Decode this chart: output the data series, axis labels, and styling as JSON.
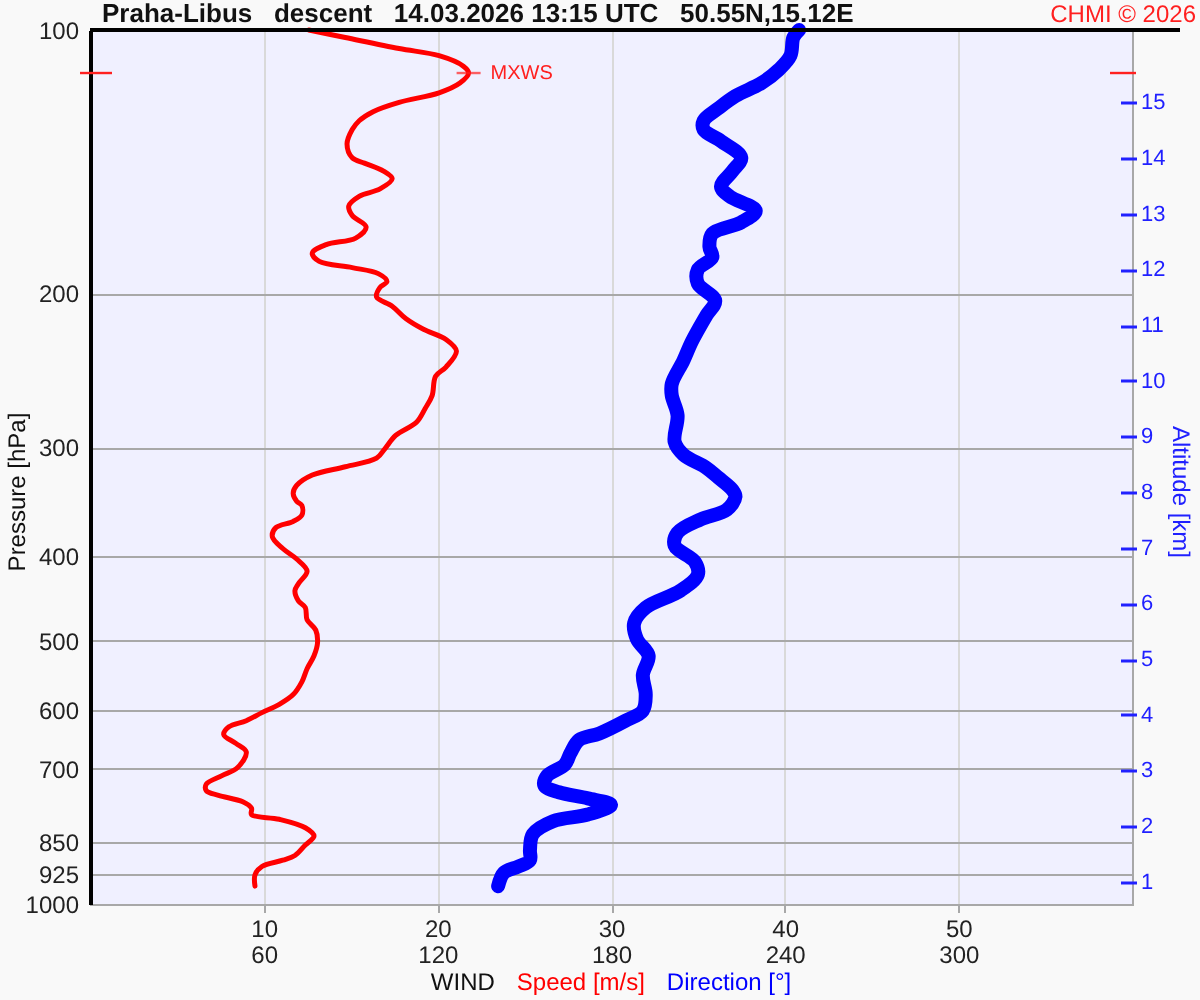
{
  "chart_data": {
    "type": "line",
    "title": "Praha-Libus   descent   14.03.2026 13:15 UTC   50.55N,15.12E",
    "xlabel": "WIND",
    "ylabel": "Pressure [hPa]",
    "y2label": "Altitude [km]",
    "annotations": [
      "CHMI © 2026",
      {
        "text": "MXWS",
        "x": 21.8,
        "y": 112
      }
    ],
    "series": [
      {
        "name": "Speed [m/s]",
        "color": "#ff0000",
        "x": [
          12.6,
          14.7,
          17.8,
          20.1,
          21.5,
          21.8,
          21.3,
          20.1,
          17.8,
          16.3,
          15.5,
          15.1,
          14.8,
          15.1,
          15.8,
          16.9,
          17.4,
          16.7,
          15.5,
          14.9,
          15.1,
          15.9,
          15.3,
          13.6,
          12.8,
          13.2,
          15.1,
          16.6,
          17.1,
          16.7,
          16.5,
          17.4,
          18.2,
          19.2,
          20.5,
          21.1,
          20.5,
          19.9,
          19.7,
          19.3,
          18.8,
          17.6,
          17.0,
          16.5,
          14.7,
          12.8,
          11.9,
          11.7,
          11.9,
          12.2,
          12.2,
          11.7,
          10.7,
          10.5,
          11.1,
          11.9,
          12.5,
          12.0,
          11.8,
          12.0,
          12.4,
          12.5,
          13.0,
          13.1,
          12.9,
          12.5,
          12.2,
          11.7,
          10.9,
          9.9,
          9.0,
          8.0,
          7.7,
          8.4,
          9.0,
          8.5,
          7.6,
          6.7,
          6.7,
          7.4,
          8.8,
          9.3,
          9.3,
          10.9,
          12.4,
          12.9,
          12.4,
          11.8,
          11.1,
          9.9,
          9.5,
          9.5
        ],
        "values": [
          100,
          102,
          105,
          107,
          110,
          112,
          115,
          118,
          121,
          124,
          127,
          130,
          135,
          140,
          142,
          145,
          148,
          152,
          155,
          159,
          163,
          168,
          173,
          176,
          180,
          184,
          187,
          190,
          194,
          197,
          202,
          207,
          214,
          220,
          226,
          233,
          243,
          249,
          262,
          271,
          281,
          291,
          301,
          309,
          316,
          323,
          332,
          339,
          346,
          350,
          359,
          365,
          371,
          380,
          392,
          403,
          416,
          430,
          438,
          450,
          458,
          473,
          486,
          503,
          520,
          538,
          557,
          576,
          591,
          604,
          617,
          627,
          640,
          655,
          670,
          698,
          713,
          729,
          742,
          751,
          764,
          777,
          790,
          800,
          818,
          836,
          856,
          880,
          891,
          906,
          926,
          954
        ]
      },
      {
        "name": "Direction [°]",
        "color": "#0000ff",
        "axis": "x2",
        "x": [
          245,
          243,
          242,
          238,
          232,
          223,
          217,
          212,
          212,
          218,
          225,
          222,
          218,
          221,
          230,
          225,
          215,
          214,
          215,
          210,
          210,
          216,
          213,
          208,
          205,
          201,
          201,
          203,
          202,
          205,
          213,
          217,
          222,
          223,
          220,
          211,
          203,
          202,
          209,
          210,
          204,
          192,
          188,
          189,
          193,
          191,
          192,
          191,
          185,
          176,
          169,
          166,
          164,
          158,
          157,
          162,
          172,
          180,
          172,
          160,
          153,
          152,
          152,
          148,
          143,
          141
        ],
        "values": [
          100,
          102,
          107,
          111,
          115,
          119,
          123,
          127,
          130,
          134,
          140,
          145,
          151,
          155,
          161,
          166,
          171,
          177,
          182,
          188,
          195,
          204,
          212,
          227,
          239,
          254,
          262,
          276,
          296,
          306,
          317,
          325,
          336,
          342,
          354,
          363,
          376,
          389,
          406,
          420,
          438,
          458,
          477,
          498,
          520,
          547,
          576,
          601,
          617,
          638,
          649,
          672,
          693,
          713,
          732,
          745,
          757,
          770,
          790,
          804,
          832,
          868,
          891,
          906,
          921,
          954
        ]
      }
    ],
    "xlim": [
      0,
      60
    ],
    "xticks": [
      10,
      20,
      30,
      40,
      50
    ],
    "x2lim": [
      0,
      360
    ],
    "x2ticks": [
      60,
      120,
      180,
      240,
      300
    ],
    "ylim": [
      1000,
      100
    ],
    "yticks": [
      100,
      200,
      300,
      400,
      500,
      600,
      700,
      850,
      925,
      1000
    ],
    "log": "y",
    "y2lim": [
      0.6,
      16.3
    ],
    "y2ticks": [
      1,
      2,
      3,
      4,
      5,
      6,
      7,
      8,
      9,
      10,
      11,
      12,
      13,
      14,
      15
    ],
    "grid": true,
    "legend": "bottom"
  }
}
